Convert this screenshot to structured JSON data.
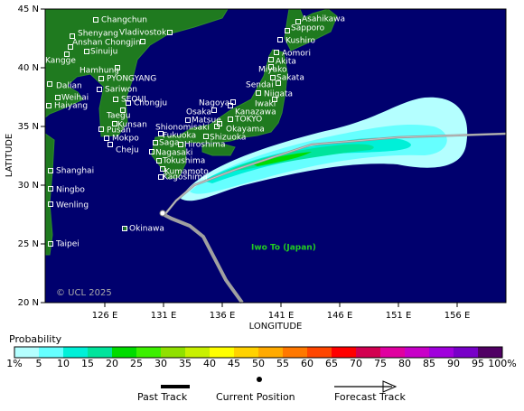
{
  "map": {
    "y_label": "LATITUDE",
    "x_label": "LONGITUDE",
    "x_ticks": [
      "126 E",
      "131 E",
      "136 E",
      "141 E",
      "146 E",
      "151 E",
      "156 E"
    ],
    "y_ticks": [
      "45 N",
      "40 N",
      "35 N",
      "30 N",
      "25 N",
      "20 N"
    ],
    "places": [
      "Changchun",
      "Shenyang",
      "Vladivostok",
      "Anshan",
      "Chongjin",
      "Sinuiju",
      "Kangge",
      "Hamhung",
      "Dalian",
      "PYONGYANG",
      "Sariwon",
      "Weihai",
      "SEOUL",
      "Haiyang",
      "Chongju",
      "Taegu",
      "Kunsan",
      "Pusan",
      "Mokpo",
      "Cheju",
      "Shanghai",
      "Ningbo",
      "Wenling",
      "Taipei",
      "Okinawa",
      "Asahikawa",
      "Sapporo",
      "Kushiro",
      "Aomori",
      "Miyako",
      "Akita",
      "Sakata",
      "Sendai",
      "Niigata",
      "Iwaki",
      "Kanazawa",
      "Nagoya",
      "TOKYO",
      "Osaka",
      "Matsue",
      "Shionomisaki",
      "Okayama",
      "Fukuoka",
      "Shizuoka",
      "Saga",
      "Hiroshima",
      "Nagasaki",
      "Tokushima",
      "Kumamoto",
      "Kagoshima"
    ],
    "annotation": "Iwo To (Japan)",
    "copyright": "© UCL 2025"
  },
  "legend": {
    "title": "Probability",
    "labels": [
      "1%",
      "5",
      "10",
      "15",
      "20",
      "25",
      "30",
      "35",
      "40",
      "45",
      "50",
      "55",
      "60",
      "65",
      "70",
      "75",
      "80",
      "85",
      "90",
      "95",
      "100%"
    ],
    "colors": [
      "#b4ffff",
      "#66ffff",
      "#00f0d8",
      "#00e49c",
      "#00dc00",
      "#3cf000",
      "#90e000",
      "#c8f000",
      "#ffff00",
      "#ffd200",
      "#ffaa00",
      "#ff7800",
      "#ff4600",
      "#ff0000",
      "#d20050",
      "#e000a0",
      "#c800c8",
      "#a000dc",
      "#7800c8",
      "#6400a0",
      "#500064"
    ]
  },
  "key": {
    "past": "Past Track",
    "current": "Current Position",
    "forecast": "Forecast Track"
  }
}
